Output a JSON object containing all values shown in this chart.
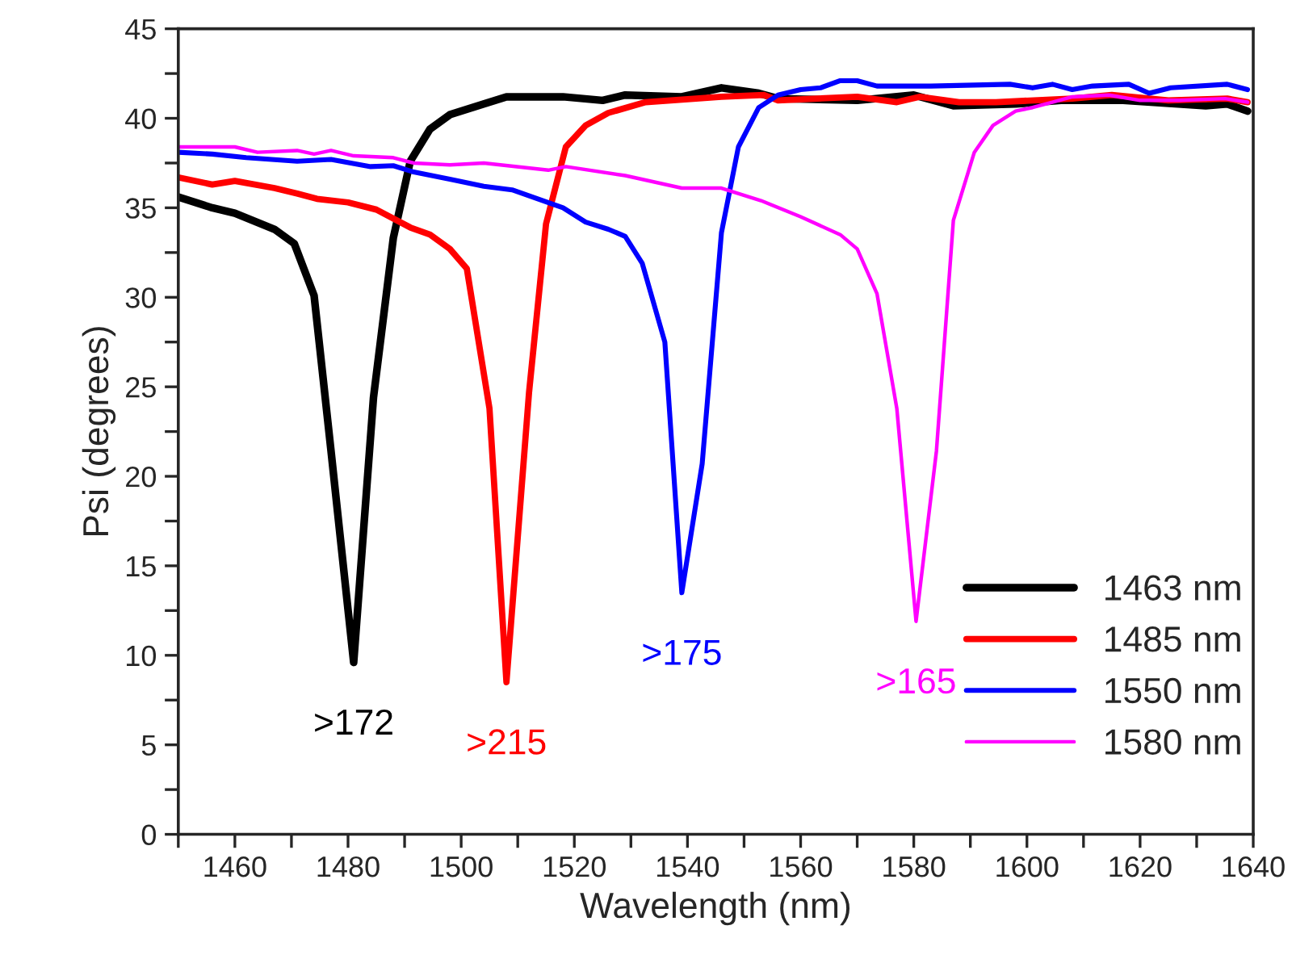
{
  "chart_data": {
    "type": "line",
    "xlabel": "Wavelength (nm)",
    "ylabel": "Psi (degrees)",
    "xlim": [
      1450,
      1640
    ],
    "ylim": [
      0,
      45
    ],
    "xticks": [
      {
        "value": 1450,
        "label": null
      },
      1460,
      {
        "value": 1470,
        "label": null
      },
      1480,
      {
        "value": 1490,
        "label": null
      },
      1500,
      {
        "value": 1510,
        "label": null
      },
      1520,
      {
        "value": 1530,
        "label": null
      },
      1540,
      {
        "value": 1550,
        "label": null
      },
      1560,
      {
        "value": 1570,
        "label": null
      },
      1580,
      {
        "value": 1590,
        "label": null
      },
      1600,
      {
        "value": 1610,
        "label": null
      },
      1620,
      {
        "value": 1630,
        "label": null
      },
      1640
    ],
    "yticks": [
      0,
      {
        "value": 2.5,
        "label": null
      },
      5,
      {
        "value": 7.5,
        "label": null
      },
      10,
      {
        "value": 12.5,
        "label": null
      },
      15,
      {
        "value": 17.5,
        "label": null
      },
      20,
      {
        "value": 22.5,
        "label": null
      },
      25,
      {
        "value": 27.5,
        "label": null
      },
      30,
      {
        "value": 32.5,
        "label": null
      },
      35,
      {
        "value": 37.5,
        "label": null
      },
      40,
      {
        "value": 42.5,
        "label": null
      },
      45
    ],
    "grid": false,
    "legend": "bottom right",
    "marker": "none",
    "line_style": "solid",
    "series": [
      {
        "name": "1463 nm",
        "color": "#000000",
        "x": [
          1450,
          1456,
          1460,
          1467,
          1470.5,
          1474,
          1477,
          1481,
          1484.5,
          1488,
          1491,
          1494.5,
          1498,
          1504,
          1508,
          1518,
          1525,
          1529,
          1539,
          1546,
          1552.6,
          1556,
          1570,
          1580,
          1587,
          1598,
          1606,
          1617,
          1631.6,
          1635.4,
          1639
        ],
        "values": [
          35.6,
          35.0,
          34.7,
          33.8,
          33.0,
          30.1,
          21.4,
          9.6,
          24.4,
          33.3,
          37.6,
          39.4,
          40.2,
          40.8,
          41.2,
          41.2,
          41.0,
          41.3,
          41.2,
          41.7,
          41.4,
          41.1,
          41.0,
          41.3,
          40.7,
          40.8,
          41.0,
          41.0,
          40.7,
          40.8,
          40.4
        ]
      },
      {
        "name": "1485 nm",
        "color": "#ff0000",
        "x": [
          1450,
          1456,
          1460,
          1467,
          1471,
          1474.5,
          1480,
          1485,
          1491,
          1494.5,
          1498,
          1501,
          1505,
          1508,
          1512,
          1515,
          1518.5,
          1522,
          1526,
          1532.6,
          1546,
          1553.5,
          1556,
          1570,
          1577,
          1581,
          1588,
          1594.5,
          1608,
          1615,
          1625,
          1635.4,
          1639
        ],
        "values": [
          36.7,
          36.3,
          36.5,
          36.1,
          35.8,
          35.5,
          35.3,
          34.9,
          33.9,
          33.5,
          32.7,
          31.6,
          23.8,
          8.5,
          24.7,
          34.1,
          38.4,
          39.6,
          40.3,
          40.9,
          41.2,
          41.3,
          41.0,
          41.2,
          40.9,
          41.2,
          40.9,
          40.9,
          41.1,
          41.3,
          41.0,
          41.1,
          40.9
        ]
      },
      {
        "name": "1550 nm",
        "color": "#0000ff",
        "x": [
          1450,
          1456,
          1462,
          1471,
          1477,
          1484,
          1488,
          1491.6,
          1498,
          1504,
          1509,
          1518,
          1522,
          1526,
          1529,
          1532,
          1536,
          1539,
          1542.6,
          1546,
          1549,
          1552.6,
          1556,
          1560,
          1563.5,
          1567,
          1570,
          1573.5,
          1583,
          1597,
          1601,
          1604.5,
          1608,
          1611.6,
          1618,
          1621.6,
          1625.4,
          1635.4,
          1639
        ],
        "values": [
          38.1,
          38.0,
          37.8,
          37.6,
          37.7,
          37.3,
          37.35,
          37.0,
          36.6,
          36.2,
          36.0,
          35.0,
          34.2,
          33.8,
          33.4,
          31.9,
          27.5,
          13.5,
          20.7,
          33.6,
          38.4,
          40.6,
          41.3,
          41.6,
          41.7,
          42.1,
          42.1,
          41.8,
          41.8,
          41.9,
          41.7,
          41.9,
          41.6,
          41.8,
          41.9,
          41.4,
          41.7,
          41.9,
          41.6
        ]
      },
      {
        "name": "1580 nm",
        "color": "#ff00ff",
        "x": [
          1450,
          1460,
          1464,
          1471,
          1474,
          1477,
          1481,
          1488,
          1491.6,
          1498,
          1504,
          1515.4,
          1518.5,
          1529,
          1539,
          1546,
          1553,
          1560,
          1567,
          1570,
          1573.5,
          1577,
          1580.4,
          1584,
          1587,
          1590.7,
          1594,
          1598,
          1601,
          1604.5,
          1608,
          1614.5,
          1620,
          1627,
          1635,
          1639
        ],
        "values": [
          38.4,
          38.4,
          38.1,
          38.2,
          38.0,
          38.2,
          37.9,
          37.8,
          37.5,
          37.4,
          37.5,
          37.1,
          37.3,
          36.8,
          36.1,
          36.1,
          35.4,
          34.5,
          33.5,
          32.7,
          30.2,
          23.8,
          11.9,
          21.4,
          34.3,
          38.1,
          39.6,
          40.4,
          40.6,
          40.9,
          41.2,
          41.3,
          41.0,
          41.0,
          41.1,
          40.9
        ]
      }
    ],
    "annotations": [
      {
        "text": ">172",
        "x": 1481,
        "y": 9.6
      },
      {
        "text": ">215",
        "x": 1508,
        "y": 8.5
      },
      {
        "text": ">175",
        "x": 1539,
        "y": 13.5
      },
      {
        "text": ">165",
        "x": 1580.4,
        "y": 11.9
      }
    ]
  }
}
